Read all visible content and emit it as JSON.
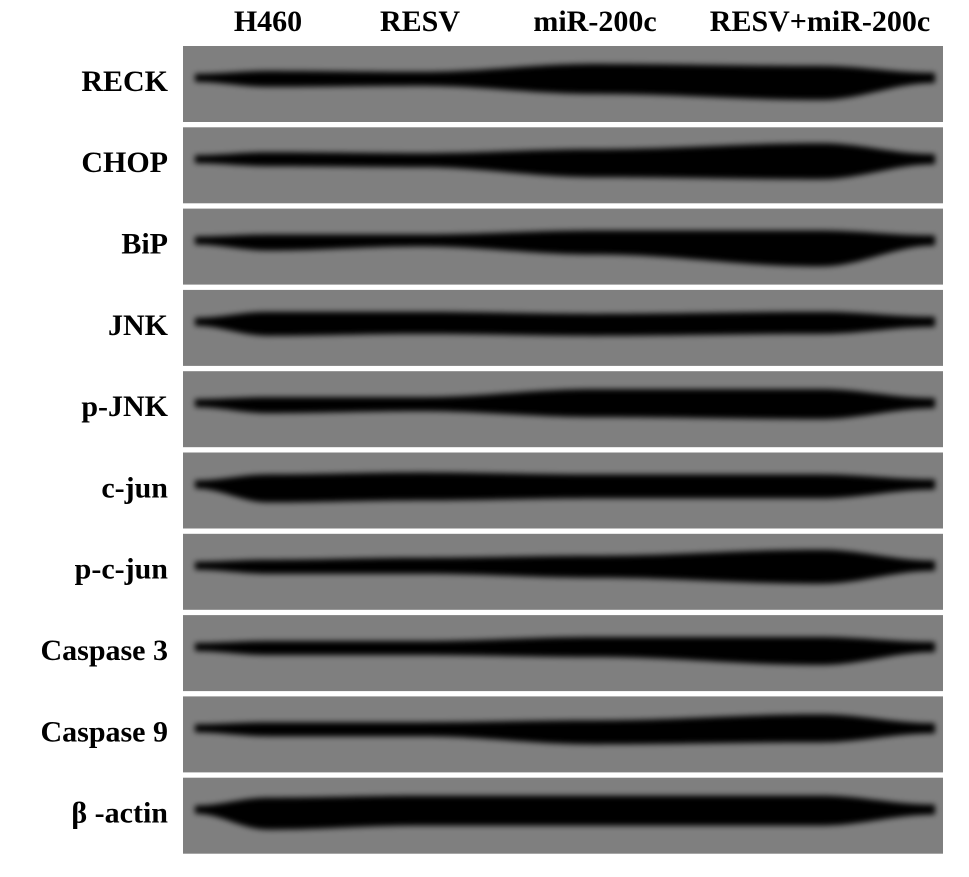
{
  "columns": [
    "H460",
    "RESV",
    "miR-200c",
    "RESV+miR-200c"
  ],
  "rows": [
    "RECK",
    "CHOP",
    "BiP",
    "JNK",
    "p-JNK",
    "c-jun",
    "p-c-jun",
    "Caspase 3",
    "Caspase 9",
    "β -actin"
  ]
}
